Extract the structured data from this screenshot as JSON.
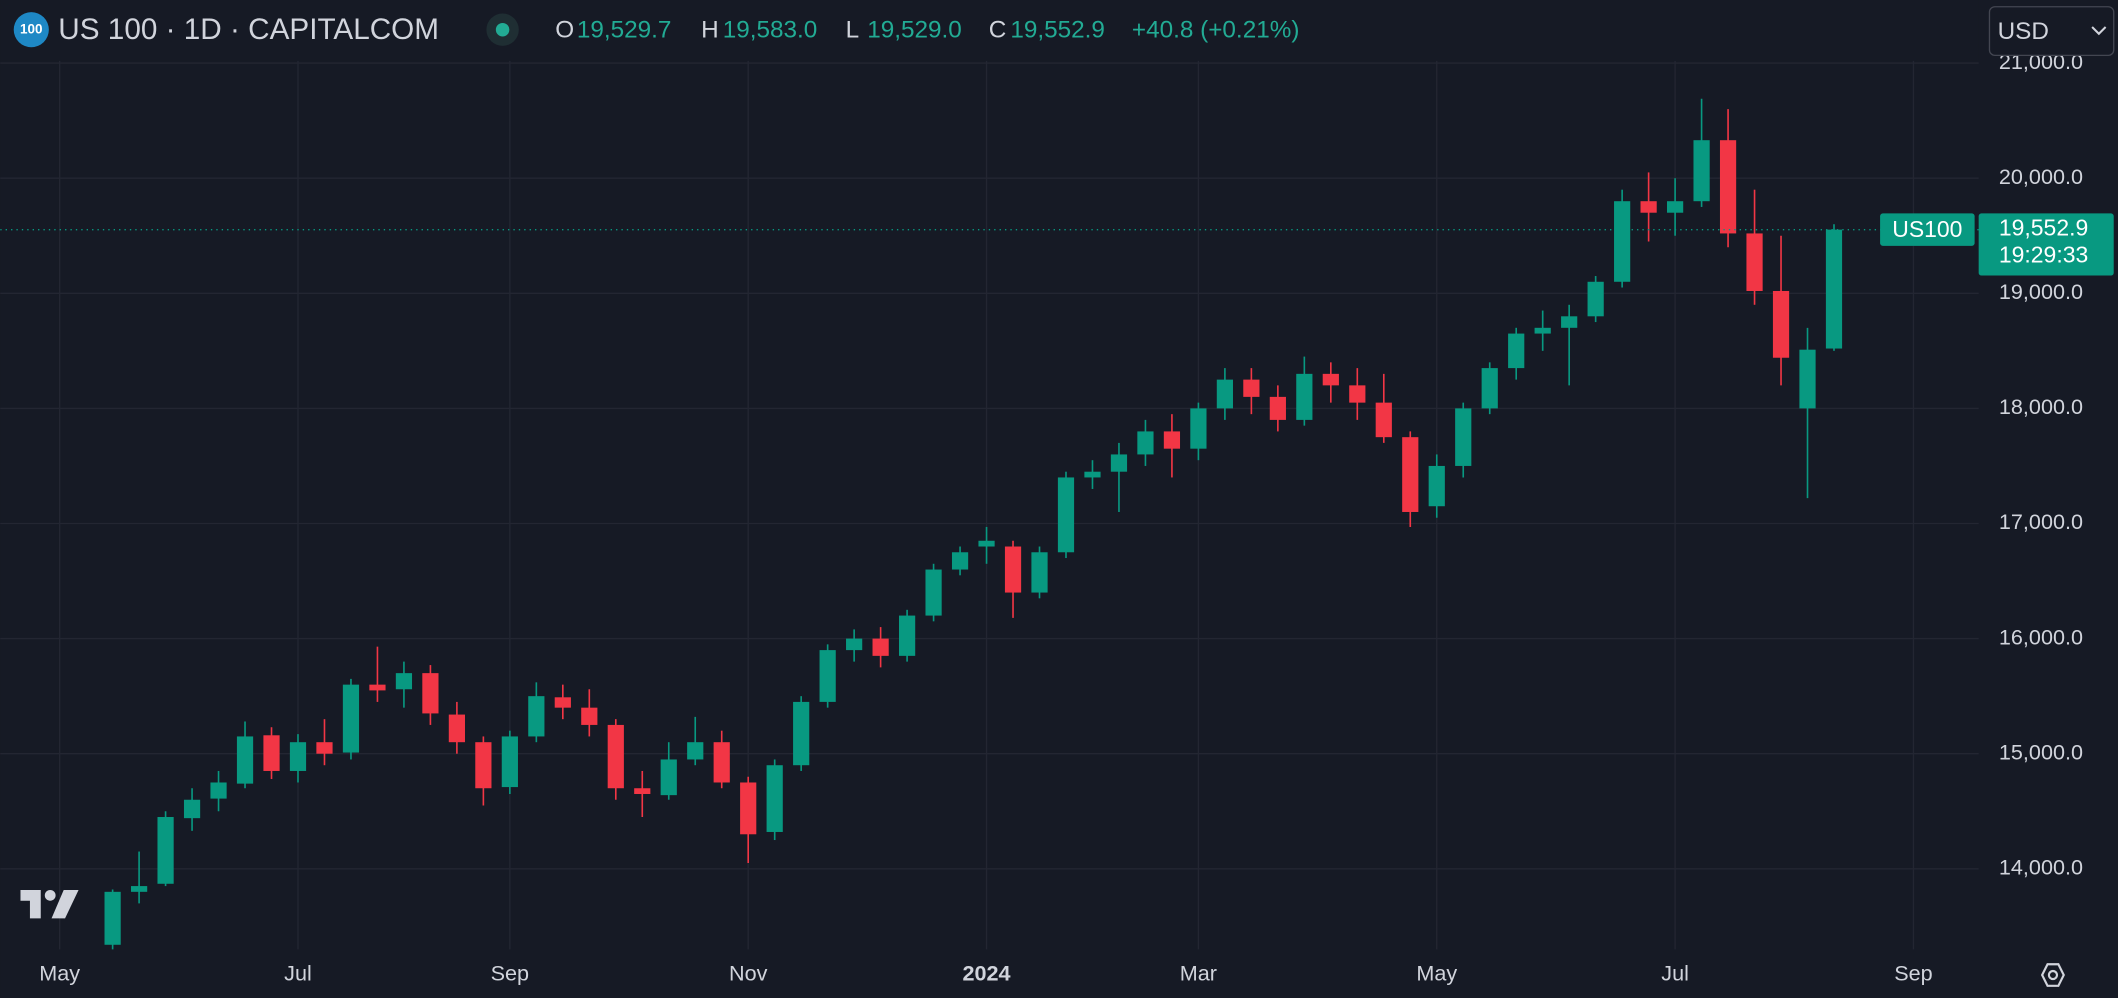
{
  "header": {
    "badge": "100",
    "title": "US 100 · 1D · CAPITALCOM",
    "ohlc": [
      {
        "key": "O",
        "value": "19,529.7"
      },
      {
        "key": "H",
        "value": "19,583.0"
      },
      {
        "key": "L",
        "value": "19,529.0"
      },
      {
        "key": "C",
        "value": "19,552.9"
      }
    ],
    "change": "+40.8 (+0.21%)",
    "currency": "USD"
  },
  "chart_data": {
    "type": "candlestick",
    "categories": [
      "May",
      null,
      null,
      null,
      null,
      null,
      null,
      null,
      null,
      "Jul",
      null,
      null,
      null,
      null,
      null,
      null,
      null,
      "Sep",
      null,
      null,
      null,
      null,
      null,
      null,
      null,
      null,
      "Nov",
      null,
      null,
      null,
      null,
      null,
      null,
      null,
      null,
      "2024",
      null,
      null,
      null,
      null,
      null,
      null,
      null,
      "Mar",
      null,
      null,
      null,
      null,
      null,
      null,
      null,
      null,
      "May",
      null,
      null,
      null,
      null,
      null,
      null,
      null,
      null,
      "Jul",
      null,
      null,
      null,
      null,
      null,
      null,
      null,
      null,
      "Sep",
      null,
      null
    ],
    "open": [
      null,
      null,
      13340,
      13800,
      13870,
      14440,
      14610,
      14740,
      15160,
      14850,
      15100,
      15010,
      15600,
      15560,
      15700,
      15340,
      15100,
      14710,
      15150,
      15490,
      15400,
      15250,
      14700,
      14640,
      14950,
      15100,
      14750,
      14320,
      14900,
      15450,
      15900,
      16000,
      15850,
      16200,
      16600,
      16800,
      16800,
      16400,
      16750,
      17400,
      17450,
      17600,
      17800,
      17650,
      18000,
      18250,
      18100,
      17900,
      18300,
      18200,
      18050,
      17750,
      17150,
      17500,
      18000,
      18350,
      18650,
      18700,
      18800,
      19100,
      19800,
      19700,
      19800,
      20330,
      19520,
      19020,
      18000,
      18520,
      null,
      null,
      null,
      null,
      null
    ],
    "high": [
      null,
      null,
      13820,
      14150,
      14500,
      14700,
      14850,
      15280,
      15230,
      15170,
      15300,
      15650,
      15930,
      15800,
      15770,
      15450,
      15150,
      15200,
      15620,
      15600,
      15560,
      15300,
      14850,
      15100,
      15320,
      15200,
      14800,
      14950,
      15500,
      15950,
      16080,
      16100,
      16250,
      16650,
      16800,
      16970,
      16850,
      16800,
      17450,
      17550,
      17700,
      17900,
      17950,
      18050,
      18350,
      18350,
      18200,
      18450,
      18400,
      18350,
      18300,
      17800,
      17600,
      18050,
      18400,
      18700,
      18850,
      18900,
      19150,
      19900,
      20050,
      20000,
      20690,
      20600,
      19900,
      19500,
      18700,
      19600,
      null,
      null,
      null,
      null,
      null
    ],
    "low": [
      null,
      null,
      13290,
      13700,
      13850,
      14330,
      14500,
      14700,
      14780,
      14750,
      14900,
      14950,
      15450,
      15400,
      15250,
      15000,
      14550,
      14650,
      15100,
      15300,
      15150,
      14600,
      14450,
      14600,
      14900,
      14700,
      14050,
      14250,
      14850,
      15400,
      15800,
      15750,
      15800,
      16150,
      16550,
      16650,
      16180,
      16350,
      16700,
      17300,
      17100,
      17500,
      17400,
      17550,
      17900,
      17950,
      17800,
      17850,
      18050,
      17900,
      17700,
      16970,
      17050,
      17400,
      17950,
      18250,
      18500,
      18200,
      18750,
      19050,
      19450,
      19500,
      19750,
      19400,
      18900,
      18200,
      17220,
      18500,
      null,
      null,
      null,
      null,
      null
    ],
    "close": [
      null,
      null,
      13800,
      13850,
      14450,
      14600,
      14750,
      15150,
      14850,
      15100,
      15000,
      15600,
      15550,
      15700,
      15350,
      15100,
      14700,
      15150,
      15500,
      15400,
      15250,
      14700,
      14650,
      14950,
      15100,
      14750,
      14300,
      14900,
      15450,
      15900,
      16000,
      15850,
      16200,
      16600,
      16750,
      16850,
      16400,
      16750,
      17400,
      17450,
      17600,
      17800,
      17650,
      18000,
      18250,
      18100,
      17900,
      18300,
      18200,
      18050,
      17750,
      17100,
      17500,
      18000,
      18350,
      18650,
      18700,
      18800,
      19100,
      19800,
      19700,
      19800,
      20330,
      19520,
      19020,
      18440,
      18510,
      19552.9,
      null,
      null,
      null,
      null,
      null
    ],
    "up_color": "#089981",
    "down_color": "#f23645",
    "ylim": [
      13300,
      21020
    ],
    "yticks": [
      {
        "value": 14000,
        "label": "14,000.0"
      },
      {
        "value": 15000,
        "label": "15,000.0"
      },
      {
        "value": 16000,
        "label": "16,000.0"
      },
      {
        "value": 17000,
        "label": "17,000.0"
      },
      {
        "value": 18000,
        "label": "18,000.0"
      },
      {
        "value": 19000,
        "label": "19,000.0"
      },
      {
        "value": 20000,
        "label": "20,000.0"
      },
      {
        "value": 21000,
        "label": "21,000.0"
      }
    ],
    "grid": true,
    "symbol_label": "US100",
    "last_price": {
      "value": 19552.9,
      "label": "19,552.9"
    },
    "countdown": "19:29:33"
  }
}
